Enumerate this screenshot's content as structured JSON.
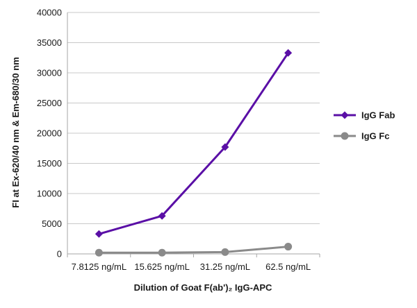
{
  "chart_data": {
    "type": "line",
    "categories": [
      "7.8125 ng/mL",
      "15.625 ng/mL",
      "31.25 ng/mL",
      "62.5 ng/mL"
    ],
    "series": [
      {
        "name": "IgG Fab",
        "color": "#5a0fa6",
        "marker": "diamond",
        "values": [
          3300,
          6300,
          17700,
          33300
        ]
      },
      {
        "name": "IgG Fc",
        "color": "#8a8a8a",
        "marker": "circle",
        "values": [
          200,
          200,
          300,
          1200
        ]
      }
    ],
    "xlabel": "Dilution of Goat F(ab')₂ IgG-APC",
    "ylabel": "FI at Ex-620/40 nm & Em-680/30 nm",
    "ylim": [
      0,
      40000
    ],
    "yticks": [
      0,
      5000,
      10000,
      15000,
      20000,
      25000,
      30000,
      35000,
      40000
    ],
    "grid": true,
    "legend_position": "right"
  }
}
